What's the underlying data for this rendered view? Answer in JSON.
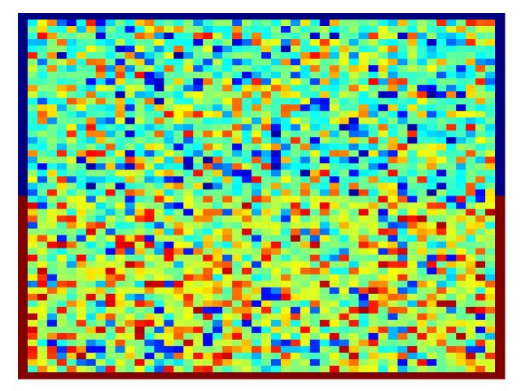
{
  "chart_data": {
    "type": "heatmap",
    "title": "",
    "xlabel": "",
    "ylabel": "",
    "colormap": "jet",
    "value_range": [
      0,
      1
    ],
    "n_rows": 56,
    "n_cols": 50,
    "axes_visible": false,
    "colorbar": "none",
    "seed": 7,
    "structure": {
      "left_column_top_value": 0.0,
      "left_column_bottom_value": 1.0,
      "left_column_switch_row": 28,
      "right_column_top_value": 0.0,
      "right_column_switch_row": 28,
      "right_column_bottom_value": 1.0,
      "top_row_value": 0.0,
      "bottom_row_value": 1.0,
      "upper_half_mean": 0.33,
      "lower_half_mean": 0.62
    },
    "colors": {
      "low": "#00007f",
      "mid": "#7fff7f",
      "high": "#7f0000"
    }
  }
}
